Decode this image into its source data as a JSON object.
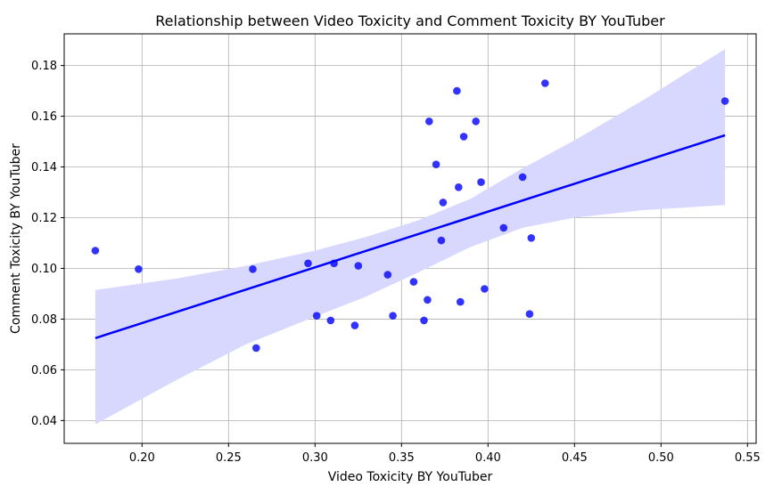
{
  "chart_data": {
    "type": "scatter",
    "title": "Relationship between Video Toxicity and Comment Toxicity BY YouTuber",
    "xlabel": "Video Toxicity BY YouTuber",
    "ylabel": "Comment Toxicity BY YouTuber",
    "xlim": [
      0.155,
      0.555
    ],
    "ylim": [
      0.031,
      0.1925
    ],
    "xticks": [
      "0.20",
      "0.25",
      "0.30",
      "0.35",
      "0.40",
      "0.45",
      "0.50",
      "0.55"
    ],
    "xtick_values": [
      0.2,
      0.25,
      0.3,
      0.35,
      0.4,
      0.45,
      0.5,
      0.55
    ],
    "yticks": [
      "0.04",
      "0.06",
      "0.08",
      "0.10",
      "0.12",
      "0.14",
      "0.16",
      "0.18"
    ],
    "ytick_values": [
      0.04,
      0.06,
      0.08,
      0.1,
      0.12,
      0.14,
      0.16,
      0.18
    ],
    "grid": true,
    "colors": {
      "points": "#0000ff",
      "line": "#0000ff",
      "band": "#d8d8ff"
    },
    "points": [
      {
        "x": 0.173,
        "y": 0.107
      },
      {
        "x": 0.198,
        "y": 0.0997
      },
      {
        "x": 0.264,
        "y": 0.0997
      },
      {
        "x": 0.266,
        "y": 0.0686
      },
      {
        "x": 0.296,
        "y": 0.102
      },
      {
        "x": 0.301,
        "y": 0.0813
      },
      {
        "x": 0.309,
        "y": 0.0795
      },
      {
        "x": 0.311,
        "y": 0.102
      },
      {
        "x": 0.323,
        "y": 0.0775
      },
      {
        "x": 0.325,
        "y": 0.101
      },
      {
        "x": 0.342,
        "y": 0.0975
      },
      {
        "x": 0.345,
        "y": 0.0813
      },
      {
        "x": 0.357,
        "y": 0.0947
      },
      {
        "x": 0.363,
        "y": 0.0795
      },
      {
        "x": 0.365,
        "y": 0.0876
      },
      {
        "x": 0.366,
        "y": 0.158
      },
      {
        "x": 0.37,
        "y": 0.141
      },
      {
        "x": 0.373,
        "y": 0.111
      },
      {
        "x": 0.374,
        "y": 0.126
      },
      {
        "x": 0.382,
        "y": 0.17
      },
      {
        "x": 0.383,
        "y": 0.132
      },
      {
        "x": 0.384,
        "y": 0.0868
      },
      {
        "x": 0.386,
        "y": 0.152
      },
      {
        "x": 0.393,
        "y": 0.158
      },
      {
        "x": 0.396,
        "y": 0.134
      },
      {
        "x": 0.398,
        "y": 0.0919
      },
      {
        "x": 0.409,
        "y": 0.116
      },
      {
        "x": 0.42,
        "y": 0.136
      },
      {
        "x": 0.424,
        "y": 0.082
      },
      {
        "x": 0.425,
        "y": 0.112
      },
      {
        "x": 0.433,
        "y": 0.173
      },
      {
        "x": 0.537,
        "y": 0.166
      }
    ],
    "regression": {
      "x": [
        0.173,
        0.537
      ],
      "y": [
        0.0725,
        0.1525
      ]
    },
    "confidence_band": {
      "x": [
        0.173,
        0.22,
        0.26,
        0.3,
        0.33,
        0.36,
        0.39,
        0.42,
        0.45,
        0.49,
        0.537
      ],
      "upper": [
        0.0915,
        0.096,
        0.101,
        0.107,
        0.1125,
        0.119,
        0.1275,
        0.1395,
        0.1505,
        0.1665,
        0.1865
      ],
      "lower": [
        0.0385,
        0.056,
        0.07,
        0.081,
        0.089,
        0.0985,
        0.1085,
        0.116,
        0.12,
        0.123,
        0.125
      ]
    }
  }
}
